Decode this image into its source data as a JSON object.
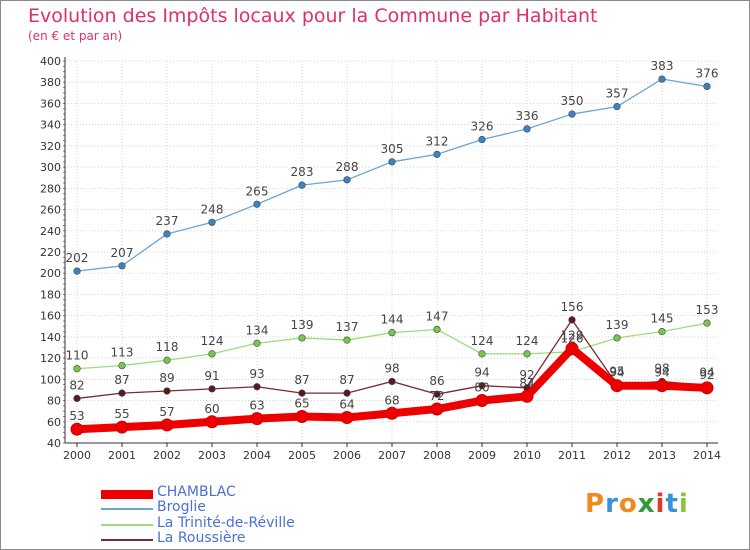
{
  "title": "Evolution des Impôts locaux pour la Commune par Habitant",
  "subtitle": "(en € et par an)",
  "logo_text": "Proxiti",
  "colors": {
    "title": "#e0306a",
    "axis": "#333333",
    "legend_text": "#4a6fd8"
  },
  "chart_data": {
    "type": "line",
    "x": [
      "2000",
      "2001",
      "2002",
      "2003",
      "2004",
      "2005",
      "2006",
      "2007",
      "2008",
      "2009",
      "2010",
      "2011",
      "2012",
      "2013",
      "2014"
    ],
    "ylim": [
      40,
      400
    ],
    "yticks": [
      40,
      60,
      80,
      100,
      120,
      140,
      160,
      180,
      200,
      220,
      240,
      260,
      280,
      300,
      320,
      340,
      360,
      380,
      400
    ],
    "grid": true,
    "legend_placement": "bottom-left",
    "series": [
      {
        "name": "CHAMBLAC",
        "color": "#ee0000",
        "marker_color": "#ee0000",
        "values": [
          53,
          55,
          57,
          60,
          63,
          65,
          64,
          68,
          72,
          80,
          84,
          129,
          94,
          94,
          92
        ],
        "labels": [
          "53",
          "55",
          "57",
          "60",
          "63",
          "65",
          "64",
          "68",
          "72",
          "80",
          "84",
          "129",
          "94",
          "94",
          "92"
        ]
      },
      {
        "name": "Broglie",
        "color": "#6aa6d6",
        "marker_color": "#3b83c4",
        "values": [
          202,
          207,
          237,
          248,
          265,
          283,
          288,
          305,
          312,
          326,
          336,
          350,
          357,
          383,
          376
        ],
        "labels": [
          "202",
          "207",
          "237",
          "248",
          "265",
          "283",
          "288",
          "305",
          "312",
          "326",
          "336",
          "350",
          "357",
          "383",
          "376"
        ]
      },
      {
        "name": "La Trinité-de-Réville",
        "color": "#9ddc7a",
        "marker_color": "#77c84a",
        "values": [
          110,
          113,
          118,
          124,
          134,
          139,
          137,
          144,
          147,
          124,
          124,
          126,
          139,
          145,
          153
        ],
        "labels": [
          "110",
          "113",
          "118",
          "124",
          "134",
          "139",
          "137",
          "144",
          "147",
          "124",
          "124",
          "126",
          "139",
          "145",
          "153"
        ]
      },
      {
        "name": "La Roussière",
        "color": "#7a2a32",
        "marker_color": "#5a1820",
        "values": [
          82,
          87,
          89,
          91,
          93,
          87,
          87,
          98,
          86,
          94,
          92,
          156,
          95,
          98,
          94
        ],
        "labels": [
          "82",
          "87",
          "89",
          "91",
          "93",
          "87",
          "87",
          "98",
          "86",
          "94",
          "92",
          "156",
          "95",
          "98",
          "94"
        ]
      }
    ]
  }
}
